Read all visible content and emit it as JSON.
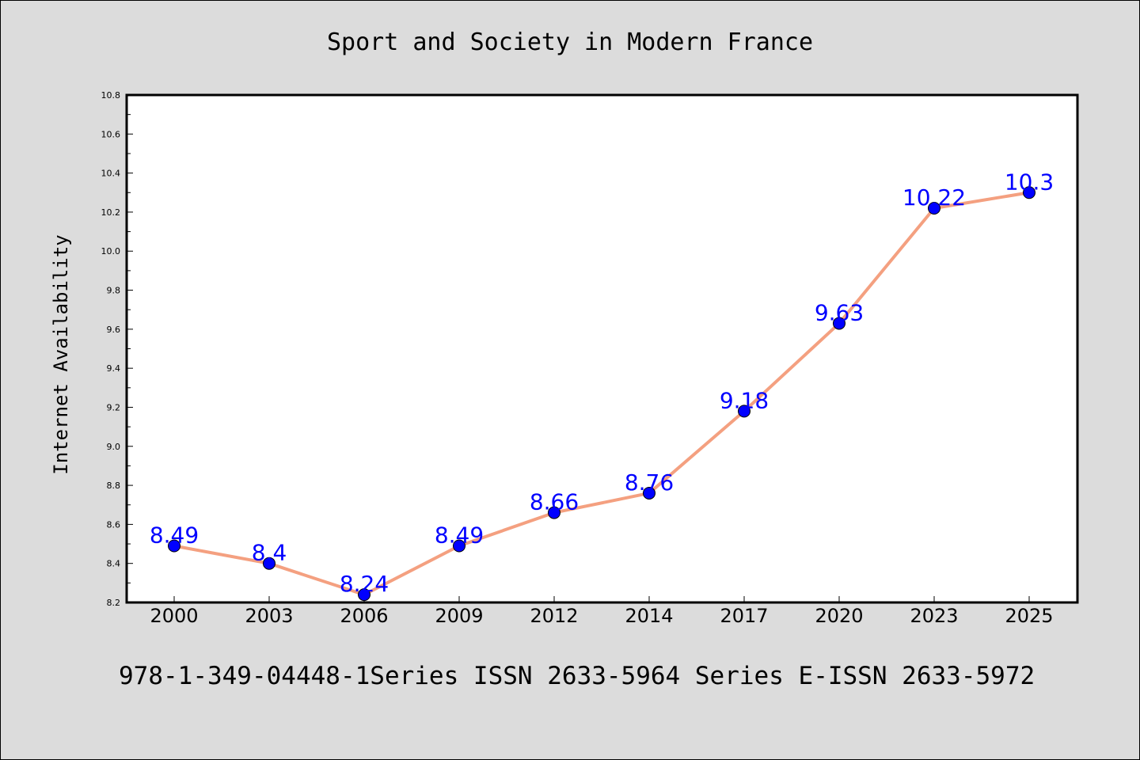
{
  "chart_data": {
    "type": "line",
    "title": "Sport and Society in Modern France",
    "xlabel": "",
    "ylabel": "Internet Availability",
    "categories": [
      "2000",
      "2003",
      "2006",
      "2009",
      "2012",
      "2014",
      "2017",
      "2020",
      "2023",
      "2025"
    ],
    "series": [
      {
        "values": [
          8.49,
          8.4,
          8.24,
          8.49,
          8.66,
          8.76,
          9.18,
          9.63,
          10.22,
          10.3
        ],
        "data_labels": [
          "8.49",
          "8.4",
          "8.24",
          "8.49",
          "8.66",
          "8.76",
          "9.18",
          "9.63",
          "10.22",
          "10.3"
        ]
      }
    ],
    "ylim": [
      8.2,
      10.8
    ],
    "yticks": [
      "8.2",
      "8.4",
      "8.6",
      "8.8",
      "9.0",
      "9.2",
      "9.4",
      "9.6",
      "9.8",
      "10.0",
      "10.2",
      "10.4",
      "10.6",
      "10.8"
    ],
    "grid": false,
    "legend": "none",
    "colors": {
      "line": "#f4a080",
      "marker": "#0000ff",
      "data_label": "#0000ff",
      "plot_background": "#ffffff",
      "figure_background": "#dcdcdc"
    }
  },
  "footer": {
    "text": "978-1-349-04448-1Series ISSN 2633-5964 Series E-ISSN 2633-5972"
  }
}
